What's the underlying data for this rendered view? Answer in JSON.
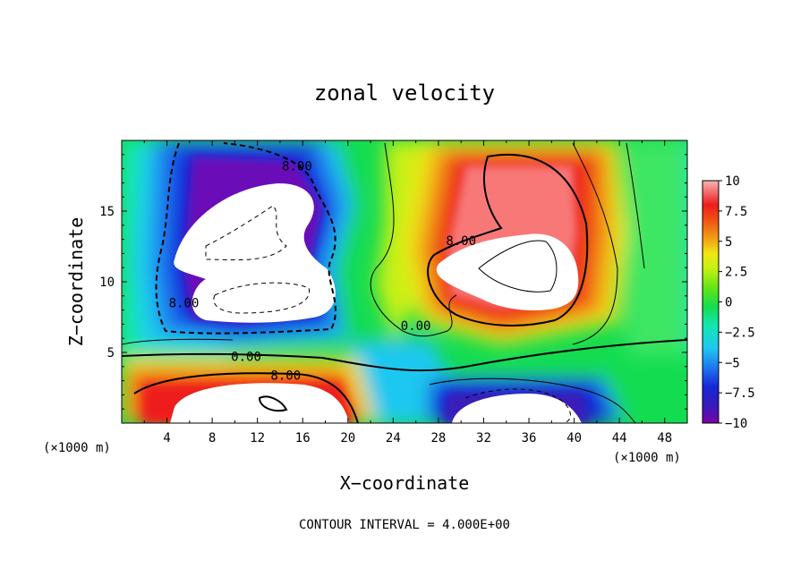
{
  "chart_data": {
    "type": "heatmap",
    "title": "zonal velocity",
    "xlabel": "X−coordinate",
    "ylabel": "Z−coordinate",
    "x_unit_left": "(×1000 m)",
    "x_unit_right": "(×1000 m)",
    "xlim": [
      0,
      50
    ],
    "ylim": [
      0,
      20
    ],
    "x_ticks": [
      4,
      8,
      12,
      16,
      20,
      24,
      28,
      32,
      36,
      40,
      44,
      48
    ],
    "y_ticks": [
      5,
      10,
      15
    ],
    "colorbar": {
      "range": [
        -10,
        10
      ],
      "ticks": [
        10,
        7.5,
        5,
        2.5,
        0,
        -2.5,
        -5,
        -7.5,
        -10
      ],
      "tick_labels": [
        "10",
        "7.5",
        "5",
        "2.5",
        "0",
        "−2.5",
        "−5",
        "−7.5",
        "−10"
      ]
    },
    "contour_labels": [
      {
        "text": "8.00",
        "x": 15.5,
        "z": 18.2
      },
      {
        "text": "8.00",
        "x": 5.5,
        "z": 8.5
      },
      {
        "text": "8.00",
        "x": 30.0,
        "z": 12.9
      },
      {
        "text": "0.00",
        "x": 11.0,
        "z": 4.7
      },
      {
        "text": "0.00",
        "x": 26.0,
        "z": 6.9
      },
      {
        "text": "8.00",
        "x": 14.5,
        "z": 3.4
      }
    ],
    "contour_interval_note": "CONTOUR INTERVAL = 4.000E+00"
  }
}
